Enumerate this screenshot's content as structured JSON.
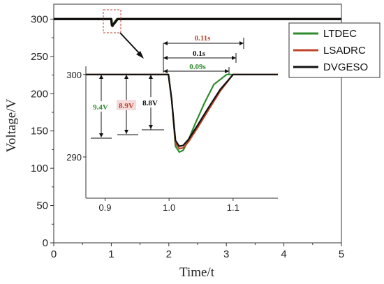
{
  "chart_data": {
    "type": "line",
    "xlabel": "Time/t",
    "ylabel": "Voltage/V",
    "xlim": [
      0,
      5
    ],
    "ylim": [
      0,
      320
    ],
    "xticks": [
      0,
      1,
      2,
      3,
      4,
      5
    ],
    "yticks": [
      0,
      50,
      100,
      150,
      200,
      250,
      300
    ],
    "legend_position": "top-right",
    "grid": false,
    "series": [
      {
        "name": "LTDEC",
        "color": "#2e8b2e",
        "x": [
          0,
          0.95,
          0.97,
          0.99,
          1.0,
          1.01,
          1.02,
          1.05,
          1.1,
          5
        ],
        "y": [
          300,
          300,
          300,
          300,
          300,
          292,
          290.6,
          295,
          300,
          300
        ]
      },
      {
        "name": "LSADRC",
        "color": "#c0452a",
        "x": [
          0,
          0.95,
          0.97,
          0.99,
          1.0,
          1.01,
          1.02,
          1.06,
          1.11,
          5
        ],
        "y": [
          300,
          300,
          300,
          300,
          300,
          292,
          290.9,
          295,
          300,
          300
        ]
      },
      {
        "name": "DVGESO",
        "color": "#111111",
        "x": [
          0,
          0.95,
          0.97,
          0.99,
          1.0,
          1.01,
          1.02,
          1.06,
          1.11,
          5
        ],
        "y": [
          300,
          300,
          300,
          300,
          300,
          292,
          291.2,
          295,
          300,
          300
        ]
      }
    ],
    "inset": {
      "xlim": [
        0.87,
        1.17
      ],
      "ylim": [
        285,
        301
      ],
      "xticks": [
        0.9,
        1.0,
        1.1
      ],
      "xtick_labels": [
        "0.9",
        "1.0",
        "1.1"
      ],
      "yticks": [
        290,
        300
      ],
      "ytick_labels": [
        "290",
        "300"
      ],
      "series": [
        {
          "name": "LTDEC",
          "color": "#2e8b2e",
          "x": [
            0.87,
            0.9,
            0.93,
            0.96,
            0.999,
            1.004,
            1.01,
            1.016,
            1.022,
            1.03,
            1.04,
            1.055,
            1.07,
            1.09,
            1.17
          ],
          "y": [
            300,
            300,
            300,
            300,
            300,
            297,
            291.3,
            290.6,
            290.8,
            292,
            293.9,
            296.5,
            298.8,
            300,
            300
          ]
        },
        {
          "name": "LSADRC",
          "color": "#c0452a",
          "x": [
            0.87,
            0.9,
            0.93,
            0.96,
            0.999,
            1.004,
            1.01,
            1.016,
            1.022,
            1.03,
            1.045,
            1.06,
            1.08,
            1.1,
            1.17
          ],
          "y": [
            300,
            300,
            300,
            300,
            300,
            297,
            291.7,
            291.0,
            291.1,
            291.8,
            293.6,
            295.5,
            298.0,
            300,
            300
          ]
        },
        {
          "name": "DVGESO",
          "color": "#111111",
          "x": [
            0.87,
            0.9,
            0.93,
            0.96,
            0.999,
            1.004,
            1.01,
            1.016,
            1.022,
            1.03,
            1.045,
            1.06,
            1.08,
            1.1,
            1.17
          ],
          "y": [
            300,
            300,
            300,
            300,
            300,
            297,
            292.0,
            291.3,
            291.4,
            292.1,
            293.9,
            295.8,
            298.2,
            300,
            300
          ]
        }
      ],
      "annotations": [
        {
          "text": "0.11s",
          "color": "#c0452a"
        },
        {
          "text": "0.1s",
          "color": "#111111"
        },
        {
          "text": "0.09s",
          "color": "#2e8b2e"
        },
        {
          "text": "9.4V",
          "color": "#2e8b2e"
        },
        {
          "text": "8.9V",
          "color": "#c0452a"
        },
        {
          "text": "8.8V",
          "color": "#111111"
        }
      ]
    }
  }
}
